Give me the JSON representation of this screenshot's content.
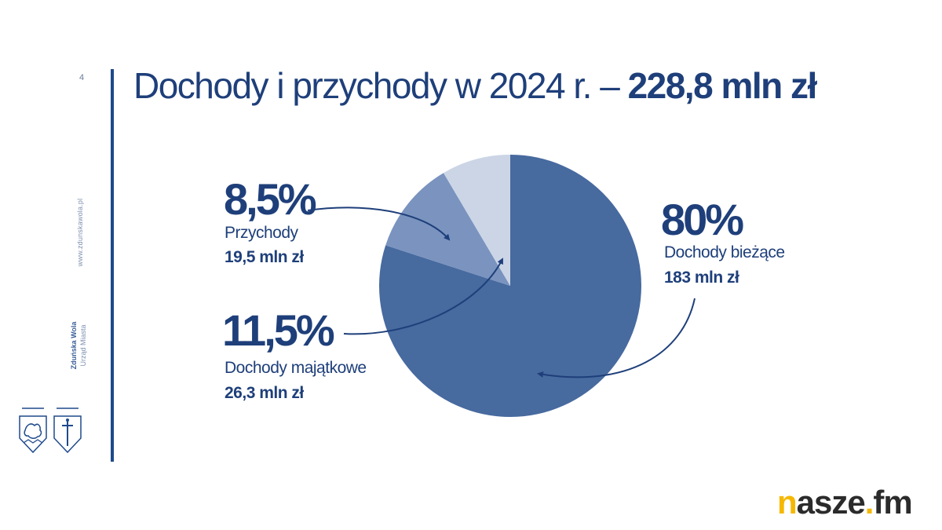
{
  "slide": {
    "page_number": "4",
    "title_regular": "Dochody i przychody w 2024 r. –",
    "title_bold": "228,8 mln zł"
  },
  "sidebar": {
    "url": "www.zdunskawola.pl",
    "city": "Zduńska Wola",
    "office": "Urząd Miasta"
  },
  "chart_data": {
    "type": "pie",
    "start_angle_deg": 0,
    "direction": "clockwise",
    "slices": [
      {
        "label": "Dochody bieżące",
        "percent": "80%",
        "amount": "183 mln zł",
        "value": 80,
        "color": "#476a9f"
      },
      {
        "label": "Przychody",
        "percent": "8,5%",
        "amount": "19,5 mln zł",
        "value": 8.5,
        "color": "#cbd5e6"
      },
      {
        "label": "Dochody majątkowe",
        "percent": "11,5%",
        "amount": "26,3 mln zł",
        "value": 11.5,
        "color": "#7a93bf"
      }
    ],
    "annotation_order": [
      "Dochody bieżące",
      "Przychody",
      "Dochody majątkowe"
    ]
  },
  "labels": {
    "current": {
      "percent": "80%",
      "name": "Dochody bieżące",
      "amount": "183 mln zł"
    },
    "revenue": {
      "percent": "8,5%",
      "name": "Przychody",
      "amount": "19,5 mln zł"
    },
    "property": {
      "percent": "11,5%",
      "name": "Dochody majątkowe",
      "amount": "26,3 mln zł"
    }
  },
  "branding": {
    "logo_first": "n",
    "logo_rest": "asze",
    "logo_dot": ".",
    "logo_end": "fm",
    "colors": {
      "accent": "#f5b800",
      "dark": "#2b2b2b",
      "navy": "#1e3f7a"
    }
  }
}
